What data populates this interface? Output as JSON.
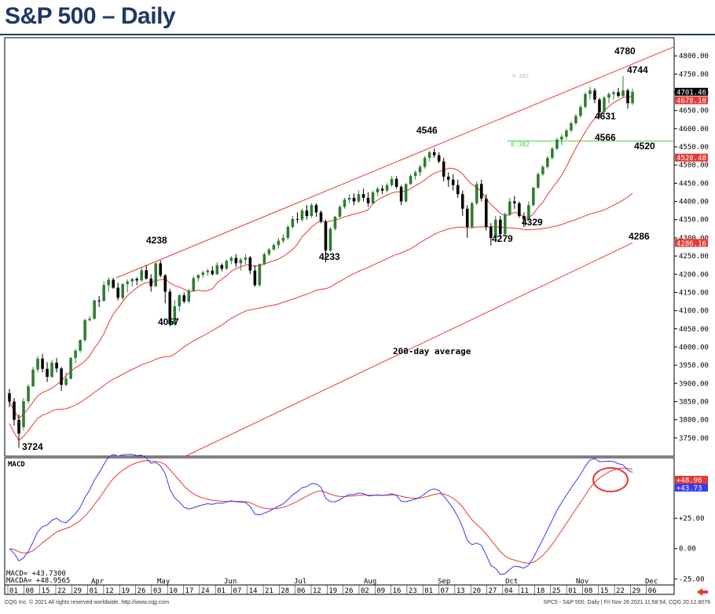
{
  "title": "S&P 500 – Daily",
  "footer": {
    "left": "CQG Inc. © 2021 All rights reserved worldwide. http://www.cqg.com",
    "right": "SPC5 - S&P 500, Daily | Fri Nov 26 2021 11:58:54, CQG 20.12.8076"
  },
  "colors": {
    "up": "#2e7d32",
    "down": "#000000",
    "ma": "#e53935",
    "macd": "#3a3af0",
    "signal": "#e53935",
    "fib": "#39d639",
    "title": "#1f3864"
  },
  "chart_data": [
    {
      "type": "candlestick",
      "ylim": [
        3700,
        4850
      ],
      "y_ticks": [
        3750,
        3800,
        3850,
        3900,
        3950,
        4000,
        4050,
        4100,
        4150,
        4200,
        4250,
        4300,
        4350,
        4400,
        4450,
        4500,
        4550,
        4600,
        4650,
        4700,
        4750,
        4800
      ],
      "y_tick_labels": [
        "3750.00",
        "3800.00",
        "3850.00",
        "3900.00",
        "3950.00",
        "4000.00",
        "4050.00",
        "4100.00",
        "4150.00",
        "4200.00",
        "4250.00",
        "4300.00",
        "4350.00",
        "4400.00",
        "4450.00",
        "4500.00",
        "4550.00",
        "4600.00",
        "4650.00",
        "4700.00",
        "4750.00",
        "4800.00"
      ],
      "x_ticks": [
        "01",
        "08",
        "15",
        "22",
        "29",
        "01",
        "12",
        "19",
        "26",
        "03",
        "10",
        "17",
        "24",
        "01",
        "07",
        "14",
        "21",
        "28",
        "06",
        "12",
        "19",
        "26",
        "02",
        "09",
        "16",
        "23",
        "01",
        "07",
        "13",
        "20",
        "27",
        "04",
        "11",
        "18",
        "25",
        "01",
        "08",
        "15",
        "22",
        "29",
        "06"
      ],
      "months": [
        "Apr",
        "May",
        "Jun",
        "Jul",
        "Aug",
        "Sep",
        "Oct",
        "Nov",
        "Dec"
      ],
      "price_tags": [
        {
          "label": "4701.46",
          "value": 4701.46,
          "color": "#000000"
        },
        {
          "label": "4678.10",
          "value": 4678.1,
          "color": "#e53935"
        },
        {
          "label": "4520.48",
          "value": 4520.48,
          "color": "#e53935"
        },
        {
          "label": "4286.16",
          "value": 4286.16,
          "color": "#e53935"
        }
      ],
      "fib_level": {
        "label": "0.382",
        "value": 4566
      },
      "fib_top_label": "0.382",
      "annotations": [
        {
          "text": "3724",
          "value": 3724
        },
        {
          "text": "4238",
          "value": 4238
        },
        {
          "text": "4057",
          "value": 4057
        },
        {
          "text": "4233",
          "value": 4233
        },
        {
          "text": "4546",
          "value": 4546
        },
        {
          "text": "4279",
          "value": 4279
        },
        {
          "text": "4329",
          "value": 4329
        },
        {
          "text": "4631",
          "value": 4631
        },
        {
          "text": "4566",
          "value": 4566
        },
        {
          "text": "4520",
          "value": 4520
        },
        {
          "text": "4286",
          "value": 4286
        },
        {
          "text": "4744",
          "value": 4744
        },
        {
          "text": "4780",
          "value": 4780
        }
      ],
      "ma_label": "200-day average",
      "trendline": {
        "from": 4190,
        "to": 4825
      },
      "candles": [
        [
          3873,
          3885,
          3835,
          3850
        ],
        [
          3850,
          3860,
          3784,
          3800
        ],
        [
          3800,
          3815,
          3723,
          3762
        ],
        [
          3780,
          3860,
          3770,
          3851
        ],
        [
          3851,
          3898,
          3845,
          3892
        ],
        [
          3892,
          3945,
          3890,
          3938
        ],
        [
          3938,
          3975,
          3930,
          3968
        ],
        [
          3968,
          3981,
          3930,
          3940
        ],
        [
          3940,
          3958,
          3904,
          3918
        ],
        [
          3918,
          3965,
          3915,
          3957
        ],
        [
          3957,
          3970,
          3930,
          3941
        ],
        [
          3941,
          3945,
          3879,
          3896
        ],
        [
          3896,
          3930,
          3892,
          3913
        ],
        [
          3913,
          3972,
          3910,
          3970
        ],
        [
          3970,
          3995,
          3955,
          3990
        ],
        [
          3990,
          4021,
          3985,
          4019
        ],
        [
          4019,
          4077,
          4015,
          4074
        ],
        [
          4074,
          4085,
          4070,
          4078
        ],
        [
          4078,
          4130,
          4075,
          4128
        ],
        [
          4128,
          4140,
          4110,
          4127
        ],
        [
          4127,
          4180,
          4124,
          4170
        ],
        [
          4170,
          4191,
          4152,
          4185
        ],
        [
          4185,
          4190,
          4160,
          4163
        ],
        [
          4163,
          4177,
          4128,
          4135
        ],
        [
          4135,
          4175,
          4130,
          4173
        ],
        [
          4173,
          4186,
          4150,
          4180
        ],
        [
          4180,
          4190,
          4165,
          4187
        ],
        [
          4187,
          4192,
          4170,
          4183
        ],
        [
          4183,
          4218,
          4180,
          4211
        ],
        [
          4211,
          4225,
          4185,
          4188
        ],
        [
          4188,
          4200,
          4152,
          4167
        ],
        [
          4167,
          4232,
          4165,
          4230
        ],
        [
          4230,
          4238,
          4191,
          4197
        ],
        [
          4197,
          4200,
          4120,
          4152
        ],
        [
          4152,
          4160,
          4057,
          4063
        ],
        [
          4063,
          4130,
          4060,
          4112
        ],
        [
          4112,
          4145,
          4098,
          4142
        ],
        [
          4142,
          4150,
          4120,
          4125
        ],
        [
          4125,
          4160,
          4120,
          4155
        ],
        [
          4155,
          4195,
          4152,
          4189
        ],
        [
          4189,
          4200,
          4180,
          4198
        ],
        [
          4198,
          4210,
          4190,
          4205
        ],
        [
          4205,
          4215,
          4195,
          4210
        ],
        [
          4210,
          4222,
          4196,
          4200
        ],
        [
          4200,
          4233,
          4198,
          4225
        ],
        [
          4225,
          4230,
          4208,
          4215
        ],
        [
          4215,
          4240,
          4212,
          4237
        ],
        [
          4237,
          4250,
          4228,
          4245
        ],
        [
          4245,
          4255,
          4220,
          4230
        ],
        [
          4230,
          4245,
          4210,
          4240
        ],
        [
          4240,
          4255,
          4228,
          4246
        ],
        [
          4246,
          4250,
          4200,
          4210
        ],
        [
          4210,
          4225,
          4165,
          4170
        ],
        [
          4170,
          4230,
          4166,
          4228
        ],
        [
          4228,
          4260,
          4225,
          4255
        ],
        [
          4255,
          4272,
          4250,
          4268
        ],
        [
          4268,
          4285,
          4265,
          4280
        ],
        [
          4280,
          4300,
          4270,
          4292
        ],
        [
          4292,
          4310,
          4285,
          4300
        ],
        [
          4300,
          4335,
          4295,
          4330
        ],
        [
          4330,
          4360,
          4325,
          4352
        ],
        [
          4352,
          4370,
          4340,
          4350
        ],
        [
          4350,
          4380,
          4345,
          4375
        ],
        [
          4375,
          4390,
          4350,
          4360
        ],
        [
          4360,
          4395,
          4355,
          4390
        ],
        [
          4390,
          4395,
          4358,
          4370
        ],
        [
          4370,
          4375,
          4340,
          4345
        ],
        [
          4345,
          4350,
          4233,
          4265
        ],
        [
          4265,
          4330,
          4262,
          4325
        ],
        [
          4325,
          4360,
          4320,
          4358
        ],
        [
          4358,
          4390,
          4355,
          4385
        ],
        [
          4385,
          4410,
          4380,
          4405
        ],
        [
          4405,
          4420,
          4395,
          4410
        ],
        [
          4410,
          4422,
          4390,
          4400
        ],
        [
          4400,
          4430,
          4395,
          4420
        ],
        [
          4420,
          4435,
          4400,
          4410
        ],
        [
          4410,
          4425,
          4385,
          4395
        ],
        [
          4395,
          4430,
          4392,
          4425
        ],
        [
          4425,
          4440,
          4415,
          4435
        ],
        [
          4435,
          4445,
          4420,
          4430
        ],
        [
          4430,
          4450,
          4425,
          4445
        ],
        [
          4445,
          4470,
          4440,
          4462
        ],
        [
          4462,
          4470,
          4435,
          4440
        ],
        [
          4440,
          4445,
          4390,
          4400
        ],
        [
          4400,
          4450,
          4398,
          4448
        ],
        [
          4448,
          4475,
          4445,
          4470
        ],
        [
          4470,
          4485,
          4460,
          4480
        ],
        [
          4480,
          4500,
          4470,
          4495
        ],
        [
          4495,
          4525,
          4490,
          4520
        ],
        [
          4520,
          4540,
          4510,
          4535
        ],
        [
          4535,
          4546,
          4520,
          4527
        ],
        [
          4527,
          4535,
          4505,
          4510
        ],
        [
          4510,
          4520,
          4455,
          4468
        ],
        [
          4468,
          4480,
          4440,
          4460
        ],
        [
          4460,
          4475,
          4430,
          4445
        ],
        [
          4445,
          4460,
          4410,
          4420
        ],
        [
          4420,
          4430,
          4360,
          4380
        ],
        [
          4380,
          4390,
          4300,
          4330
        ],
        [
          4330,
          4400,
          4325,
          4395
        ],
        [
          4395,
          4455,
          4390,
          4448
        ],
        [
          4448,
          4460,
          4400,
          4408
        ],
        [
          4408,
          4420,
          4320,
          4330
        ],
        [
          4330,
          4340,
          4279,
          4300
        ],
        [
          4300,
          4360,
          4288,
          4350
        ],
        [
          4350,
          4360,
          4300,
          4310
        ],
        [
          4310,
          4370,
          4305,
          4365
        ],
        [
          4365,
          4410,
          4360,
          4400
        ],
        [
          4400,
          4415,
          4380,
          4395
        ],
        [
          4395,
          4400,
          4355,
          4360
        ],
        [
          4360,
          4370,
          4329,
          4350
        ],
        [
          4350,
          4400,
          4345,
          4390
        ],
        [
          4390,
          4440,
          4385,
          4438
        ],
        [
          4438,
          4480,
          4435,
          4475
        ],
        [
          4475,
          4500,
          4470,
          4495
        ],
        [
          4495,
          4525,
          4490,
          4520
        ],
        [
          4520,
          4550,
          4515,
          4545
        ],
        [
          4545,
          4575,
          4540,
          4570
        ],
        [
          4570,
          4585,
          4555,
          4578
        ],
        [
          4578,
          4600,
          4570,
          4595
        ],
        [
          4595,
          4620,
          4590,
          4615
        ],
        [
          4615,
          4640,
          4610,
          4635
        ],
        [
          4635,
          4665,
          4630,
          4660
        ],
        [
          4660,
          4700,
          4655,
          4695
        ],
        [
          4695,
          4715,
          4680,
          4705
        ],
        [
          4705,
          4712,
          4670,
          4680
        ],
        [
          4680,
          4685,
          4631,
          4645
        ],
        [
          4645,
          4690,
          4640,
          4685
        ],
        [
          4685,
          4700,
          4670,
          4695
        ],
        [
          4695,
          4705,
          4680,
          4700
        ],
        [
          4700,
          4712,
          4685,
          4690
        ],
        [
          4690,
          4744,
          4685,
          4705
        ],
        [
          4705,
          4710,
          4655,
          4670
        ],
        [
          4670,
          4710,
          4665,
          4701
        ]
      ]
    },
    {
      "type": "line",
      "title": "MACD",
      "series": [
        {
          "name": "MACD",
          "legend": "MACD= +43.7300",
          "color": "#3a3af0",
          "tag": "+43.73",
          "last": 43.73
        },
        {
          "name": "MACDA",
          "legend": "MACDA= +48.9565",
          "color": "#e53935",
          "tag": "+48.96",
          "last": 48.96
        }
      ],
      "ylim": [
        -30,
        75
      ],
      "y_ticks": [
        -25,
        0,
        25
      ],
      "y_tick_labels": [
        "-25.00",
        "0.00",
        "+25.00"
      ]
    }
  ]
}
